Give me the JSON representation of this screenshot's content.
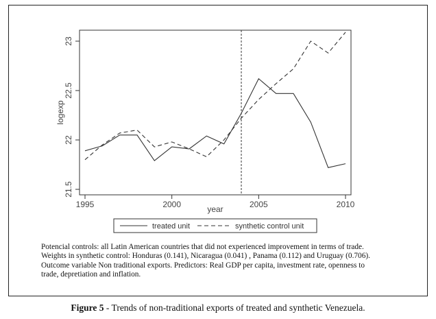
{
  "chart_data": {
    "type": "line",
    "xlabel": "year",
    "ylabel": "logexp",
    "xlim": [
      1995,
      2010
    ],
    "ylim": [
      21.5,
      23
    ],
    "x_ticks": [
      "1995",
      "2000",
      "2005",
      "2010"
    ],
    "y_ticks": [
      "21.5",
      "22",
      "22.5",
      "23"
    ],
    "intervention_year": 2004,
    "x": [
      1995,
      1996,
      1997,
      1998,
      1999,
      2000,
      2001,
      2002,
      2003,
      2004,
      2005,
      2006,
      2007,
      2008,
      2009,
      2010
    ],
    "series": [
      {
        "name": "treated unit",
        "style": "solid",
        "values": [
          21.89,
          21.94,
          22.05,
          22.05,
          21.79,
          21.93,
          21.91,
          22.04,
          21.96,
          22.27,
          22.62,
          22.47,
          22.47,
          22.18,
          21.72,
          21.76
        ]
      },
      {
        "name": "synthetic control unit",
        "style": "dashed",
        "values": [
          21.8,
          21.95,
          22.07,
          22.1,
          21.93,
          21.98,
          21.91,
          21.83,
          22.0,
          22.22,
          22.41,
          22.57,
          22.72,
          23.0,
          22.88,
          23.09
        ]
      }
    ],
    "legend_position": "bottom"
  },
  "notes": [
    "Potencial controls: all Latin American  countries that did not experienced improvement in terms of trade.",
    "Weights in synthetic control: Honduras (0.141), Nicaragua (0.041) , Panama (0.112)  and Uruguay (0.706).",
    "Outcome variable Non traditional exports.  Predictors: Real GDP per capita, investment rate, openness to",
    "trade, depretiation and  inflation."
  ],
  "caption": {
    "label": "Figure 5",
    "text": " - Trends of non-traditional exports of treated and synthetic Venezuela."
  },
  "colors": {
    "line": "#333333",
    "frame": "#222222",
    "text": "#444444"
  }
}
